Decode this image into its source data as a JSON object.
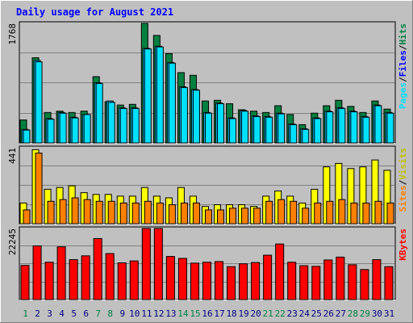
{
  "chart_data": {
    "type": "bar",
    "title": "Daily usage for August 2021",
    "colors": {
      "background": "#c0c0c0",
      "plot": "#c0c0c0",
      "title": "#0000ff",
      "hits": "#008040",
      "files": "#00c0ff",
      "pages": "#00e0ff",
      "visits": "#ffff00",
      "sites": "#ff8000",
      "kbytes": "#ff0000",
      "weekend_day": "#008040",
      "weekday": "#000080"
    },
    "days": [
      "1",
      "2",
      "3",
      "4",
      "5",
      "6",
      "7",
      "8",
      "9",
      "10",
      "11",
      "12",
      "13",
      "14",
      "15",
      "16",
      "17",
      "18",
      "19",
      "20",
      "21",
      "22",
      "23",
      "24",
      "25",
      "26",
      "27",
      "28",
      "29",
      "30",
      "31"
    ],
    "weekend_days": [
      1,
      7,
      8,
      14,
      15,
      21,
      22,
      28,
      29
    ],
    "panels": [
      {
        "id": "top",
        "ymax_label": "1768",
        "ymax": 1768,
        "legend": [
          "Pages",
          "/",
          "Files",
          "/",
          "Hits"
        ],
        "series": [
          {
            "name": "Hits",
            "values": [
              340,
              1260,
              450,
              470,
              450,
              470,
              980,
              610,
              560,
              570,
              1768,
              1590,
              1320,
              1040,
              1000,
              620,
              630,
              580,
              490,
              470,
              450,
              550,
              420,
              270,
              440,
              550,
              630,
              540,
              450,
              620,
              500
            ]
          },
          {
            "name": "Files",
            "values": [
              200,
              1220,
              360,
              450,
              380,
              420,
              890,
              620,
              520,
              520,
              1400,
              1430,
              1190,
              830,
              790,
              450,
              590,
              370,
              480,
              400,
              390,
              440,
              280,
              210,
              370,
              470,
              520,
              470,
              390,
              560,
              450
            ]
          },
          {
            "name": "Pages",
            "values": [
              190,
              1200,
              350,
              440,
              370,
              420,
              880,
              600,
              510,
              510,
              1390,
              1420,
              1180,
              820,
              780,
              440,
              580,
              360,
              470,
              390,
              380,
              430,
              270,
              200,
              360,
              460,
              510,
              460,
              380,
              550,
              440
            ]
          }
        ]
      },
      {
        "id": "middle",
        "ymax_label": "441",
        "ymax": 441,
        "legend": [
          "Sites",
          "/",
          "Visits"
        ],
        "series": [
          {
            "name": "Visits",
            "values": [
              120,
              430,
              200,
              210,
              220,
              180,
              170,
              170,
              160,
              160,
              210,
              160,
              150,
              210,
              160,
              100,
              110,
              110,
              110,
              100,
              160,
              190,
              160,
              120,
              200,
              330,
              350,
              320,
              330,
              370,
              310
            ]
          },
          {
            "name": "Sites",
            "values": [
              80,
              410,
              130,
              140,
              150,
              140,
              130,
              130,
              120,
              120,
              130,
              120,
              110,
              120,
              120,
              80,
              80,
              90,
              90,
              90,
              130,
              140,
              130,
              90,
              120,
              130,
              140,
              120,
              120,
              130,
              120
            ]
          }
        ]
      },
      {
        "id": "bottom",
        "ymax_label": "22245",
        "ymax": 22245,
        "legend": [
          "KBytes"
        ],
        "series": [
          {
            "name": "KBytes",
            "values": [
              10700,
              16800,
              11700,
              16500,
              12500,
              13700,
              19100,
              14400,
              11500,
              12100,
              22245,
              22245,
              13500,
              12900,
              11400,
              11700,
              11900,
              10300,
              11200,
              11600,
              13900,
              17400,
              11700,
              10600,
              10400,
              12400,
              13300,
              10900,
              9400,
              12500,
              10300
            ]
          }
        ]
      }
    ]
  }
}
